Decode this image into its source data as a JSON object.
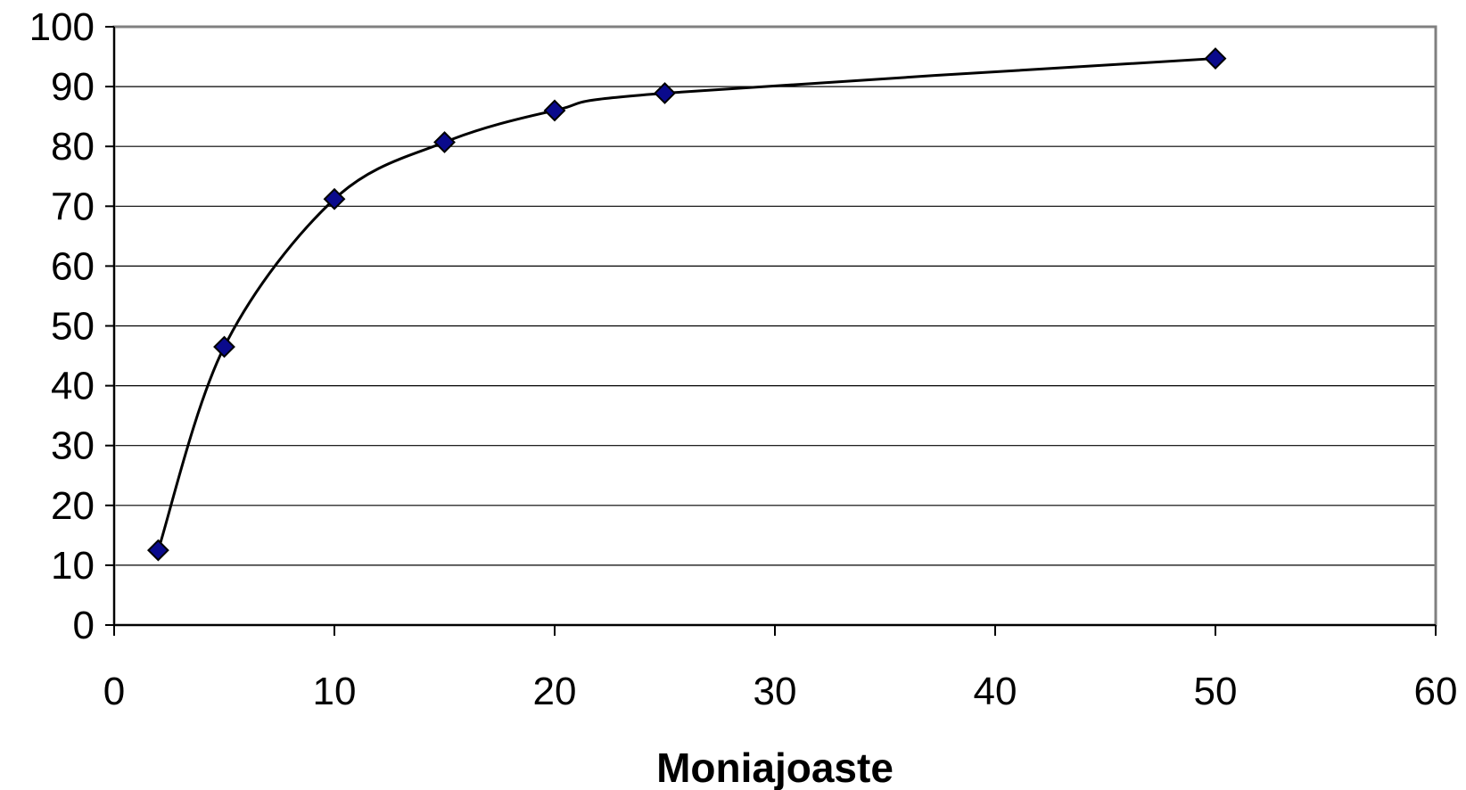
{
  "chart_data": {
    "type": "line",
    "title": "",
    "xlabel": "Moniajoaste",
    "ylabel": "",
    "xlim": [
      0,
      60
    ],
    "ylim": [
      0,
      100
    ],
    "x_ticks": [
      "0",
      "10",
      "20",
      "30",
      "40",
      "50",
      "60"
    ],
    "y_ticks": [
      "0",
      "10",
      "20",
      "30",
      "40",
      "50",
      "60",
      "70",
      "80",
      "90",
      "100"
    ],
    "grid": "horizontal",
    "legend": "none",
    "series": [
      {
        "x": [
          2,
          5,
          10,
          15,
          20,
          25,
          50
        ],
        "values": [
          12.5,
          46.5,
          71.2,
          80.7,
          86.0,
          88.9,
          94.7
        ],
        "marker": "diamond",
        "marker_color": "#0a0a8c",
        "line_color": "#000000",
        "smooth": true
      }
    ]
  }
}
